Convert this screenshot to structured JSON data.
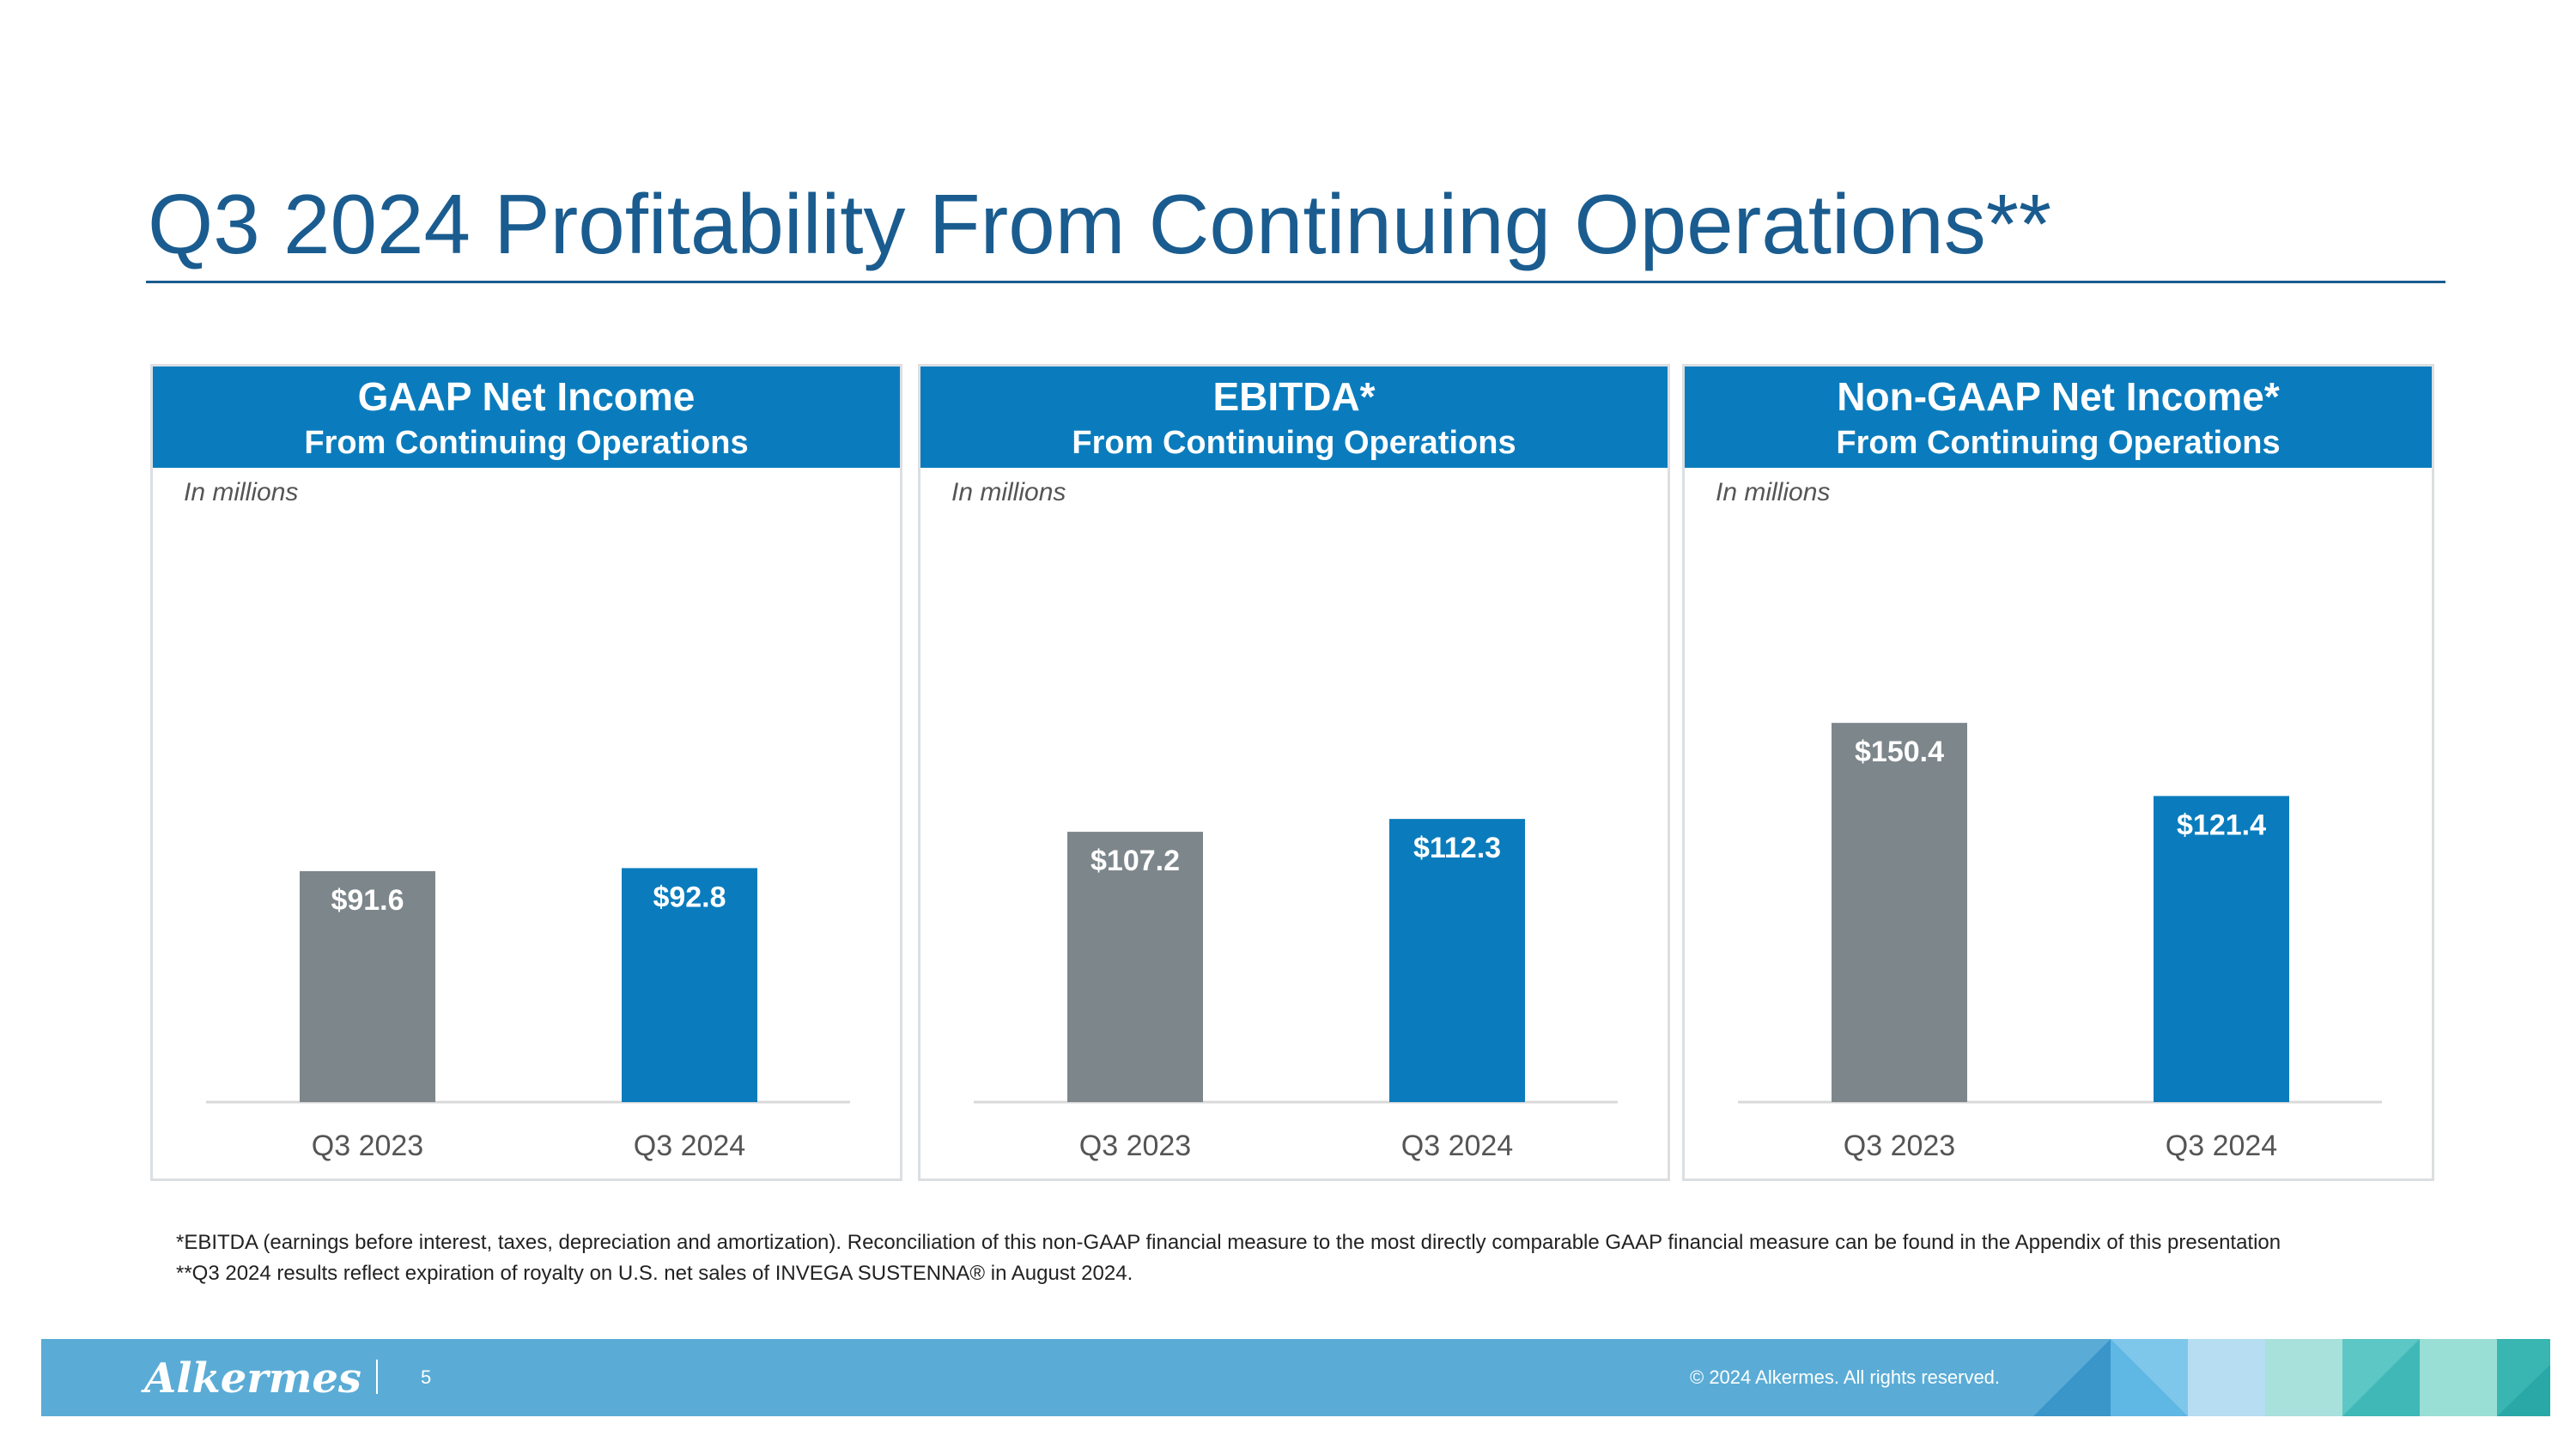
{
  "title": "Q3 2024 Profitability From Continuing Operations**",
  "chart_data": [
    {
      "type": "bar",
      "title": "GAAP Net Income",
      "subtitle": "From Continuing Operations",
      "unit_note": "In millions",
      "categories": [
        "Q3 2023",
        "Q3 2024"
      ],
      "values": [
        91.6,
        92.8
      ],
      "labels": [
        "$91.6",
        "$92.8"
      ],
      "colors": [
        "#7d868b",
        "#0a7cbd"
      ],
      "ylim": [
        0,
        160
      ]
    },
    {
      "type": "bar",
      "title": "EBITDA*",
      "subtitle": "From Continuing Operations",
      "unit_note": "In millions",
      "categories": [
        "Q3 2023",
        "Q3 2024"
      ],
      "values": [
        107.2,
        112.3
      ],
      "labels": [
        "$107.2",
        "$112.3"
      ],
      "colors": [
        "#7d868b",
        "#0a7cbd"
      ],
      "ylim": [
        0,
        160
      ]
    },
    {
      "type": "bar",
      "title": "Non-GAAP Net Income*",
      "subtitle": "From Continuing Operations",
      "unit_note": "In millions",
      "categories": [
        "Q3 2023",
        "Q3 2024"
      ],
      "values": [
        150.4,
        121.4
      ],
      "labels": [
        "$150.4",
        "$121.4"
      ],
      "colors": [
        "#7d868b",
        "#0a7cbd"
      ],
      "ylim": [
        0,
        160
      ]
    }
  ],
  "footnotes": {
    "line1": "*EBITDA (earnings before interest, taxes, depreciation and amortization). Reconciliation of this non-GAAP financial measure to the most directly comparable GAAP financial measure can be found in the Appendix of this presentation",
    "line2": "**Q3 2024 results reflect expiration of royalty on U.S. net sales of INVEGA SUSTENNA® in August 2024."
  },
  "footer": {
    "logo": "Alkermes",
    "page_number": "5",
    "copyright": "© 2024 Alkermes. All rights reserved."
  }
}
